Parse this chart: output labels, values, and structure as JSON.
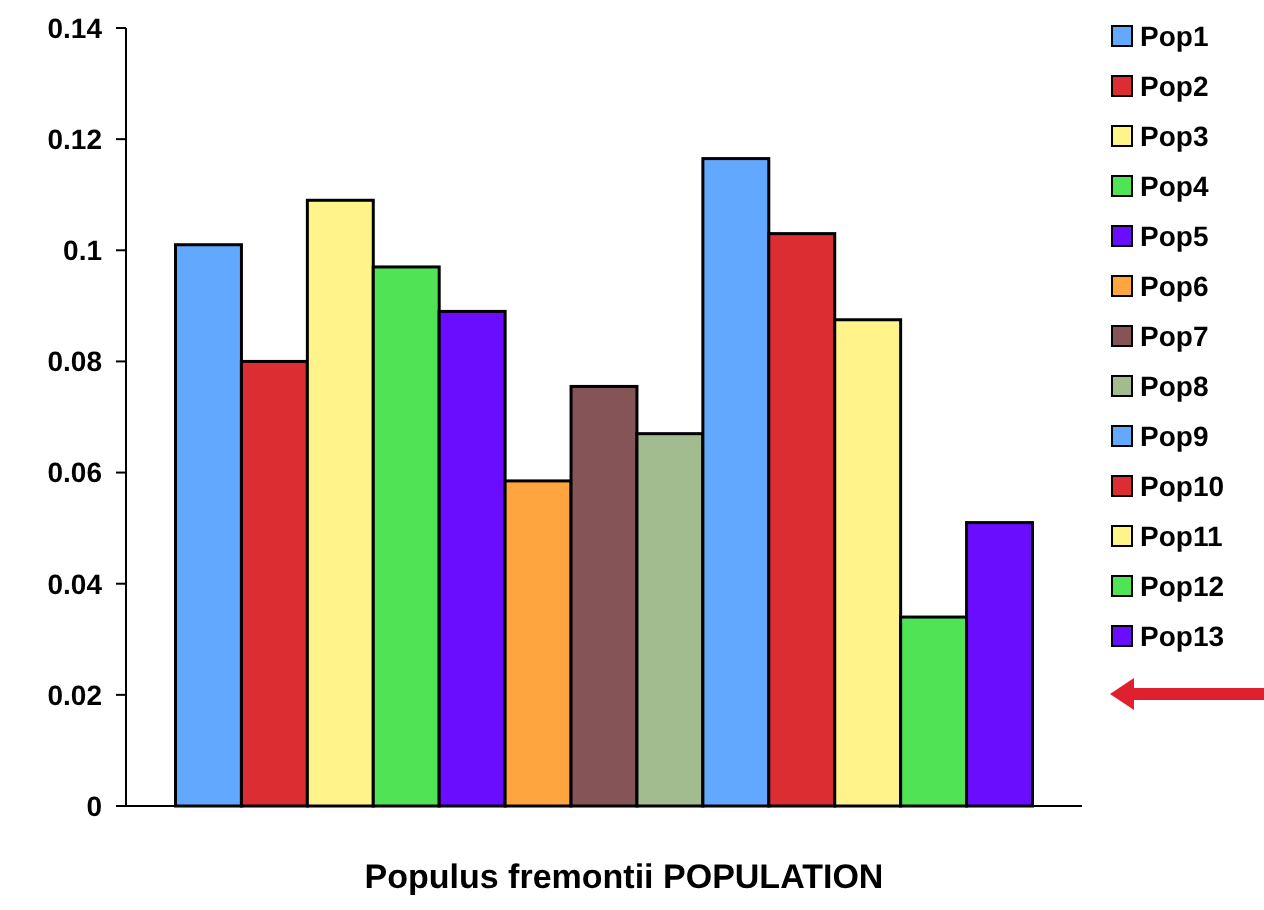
{
  "chart_data": {
    "type": "bar",
    "xlabel": "Populus fremontii POPULATION",
    "categories": [
      null
    ],
    "ylim": [
      0,
      0.14
    ],
    "yticks": [
      0,
      0.02,
      0.04,
      0.06,
      0.08,
      0.1,
      0.12,
      0.14
    ],
    "grid": false,
    "legend": "right",
    "series": [
      {
        "name": "Pop1",
        "color": "#62a8ff",
        "values": [
          0.101
        ]
      },
      {
        "name": "Pop2",
        "color": "#dc2d32",
        "values": [
          0.08
        ]
      },
      {
        "name": "Pop3",
        "color": "#fff38a",
        "values": [
          0.109
        ]
      },
      {
        "name": "Pop4",
        "color": "#50e356",
        "values": [
          0.097
        ]
      },
      {
        "name": "Pop5",
        "color": "#6a0dff",
        "values": [
          0.089
        ]
      },
      {
        "name": "Pop6",
        "color": "#ffa540",
        "values": [
          0.0585
        ]
      },
      {
        "name": "Pop7",
        "color": "#845456",
        "values": [
          0.0755
        ]
      },
      {
        "name": "Pop8",
        "color": "#a3bc8f",
        "values": [
          0.067
        ]
      },
      {
        "name": "Pop9",
        "color": "#62a8ff",
        "values": [
          0.1165
        ]
      },
      {
        "name": "Pop10",
        "color": "#dc2d32",
        "values": [
          0.103
        ]
      },
      {
        "name": "Pop11",
        "color": "#fff38a",
        "values": [
          0.0875
        ]
      },
      {
        "name": "Pop12",
        "color": "#50e356",
        "values": [
          0.034
        ]
      },
      {
        "name": "Pop13",
        "color": "#6a0dff",
        "values": [
          0.051
        ]
      }
    ]
  }
}
